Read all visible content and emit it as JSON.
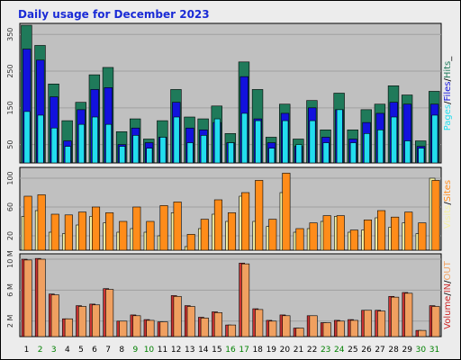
{
  "colors": {
    "hits": "#1f7a5a",
    "files": "#1212dd",
    "pages": "#22ddee",
    "visits": "#f5f0a0",
    "sites": "#ff8c1a",
    "kbin": "#cc3333",
    "kbout": "#f0a060",
    "volume": "#cc2222",
    "day_weekday": "#000000",
    "day_weekend": "#008000",
    "title": "#1a2bd6"
  },
  "chart_data": {
    "type": "bar",
    "title": "Daily usage for December 2023",
    "categories": [
      "1",
      "2",
      "3",
      "4",
      "5",
      "6",
      "7",
      "8",
      "9",
      "10",
      "11",
      "12",
      "13",
      "14",
      "15",
      "16",
      "17",
      "18",
      "19",
      "20",
      "21",
      "22",
      "23",
      "24",
      "25",
      "26",
      "27",
      "28",
      "29",
      "30",
      "31"
    ],
    "weekend_days": [
      "2",
      "3",
      "9",
      "10",
      "16",
      "17",
      "23",
      "24",
      "30",
      "31"
    ],
    "panels": [
      {
        "name": "usage",
        "ylim": [
          0,
          380
        ],
        "yticks": [
          50,
          150,
          250,
          350
        ],
        "legend_label_parts": [
          "Pages",
          "/",
          "Files",
          "/",
          "Hits",
          "_"
        ],
        "series": [
          {
            "name": "Hits",
            "values": [
              375,
              320,
              215,
              115,
              165,
              240,
              260,
              85,
              120,
              65,
              115,
              200,
              125,
              120,
              155,
              80,
              275,
              200,
              70,
              160,
              65,
              170,
              90,
              190,
              90,
              145,
              160,
              210,
              185,
              60,
              195
            ]
          },
          {
            "name": "Files",
            "values": [
              310,
              280,
              180,
              60,
              145,
              200,
              205,
              50,
              95,
              55,
              70,
              165,
              95,
              90,
              110,
              55,
              235,
              120,
              55,
              135,
              45,
              150,
              70,
              145,
              65,
              110,
              135,
              165,
              160,
              45,
              160
            ]
          },
          {
            "name": "Pages",
            "values": [
              140,
              130,
              95,
              45,
              105,
              125,
              105,
              45,
              75,
              40,
              70,
              125,
              55,
              75,
              120,
              55,
              135,
              115,
              40,
              115,
              50,
              115,
              55,
              145,
              55,
              80,
              90,
              125,
              60,
              40,
              130
            ]
          }
        ]
      },
      {
        "name": "visitors",
        "ylim": [
          0,
          115
        ],
        "yticks": [
          20,
          60,
          100
        ],
        "legend_label_parts": [
          "Visits",
          "/",
          "Sites"
        ],
        "series": [
          {
            "name": "Visits",
            "values": [
              47,
              55,
              25,
              23,
              35,
              47,
              38,
              25,
              30,
              25,
              20,
              52,
              5,
              30,
              50,
              40,
              75,
              40,
              33,
              80,
              25,
              30,
              40,
              47,
              25,
              28,
              45,
              32,
              38,
              23,
              100
            ]
          },
          {
            "name": "Sites",
            "values": [
              75,
              77,
              50,
              49,
              53,
              60,
              52,
              40,
              60,
              40,
              62,
              67,
              22,
              43,
              70,
              52,
              80,
              97,
              43,
              107,
              30,
              38,
              48,
              48,
              28,
              42,
              55,
              46,
              53,
              38,
              97
            ]
          }
        ]
      },
      {
        "name": "volume",
        "ylim": [
          0,
          10700000
        ],
        "yticks": [
          2000000,
          6000000,
          10000000
        ],
        "ytick_labels": [
          "2 M",
          "6 M",
          "10 M"
        ],
        "legend_label_parts": [
          "Volume",
          "/",
          "IN",
          "/",
          "OUT"
        ],
        "series": [
          {
            "name": "KBytes In",
            "values": [
              10000000,
              10100000,
              5500000,
              2300000,
              4000000,
              4200000,
              6200000,
              2000000,
              2800000,
              2200000,
              1900000,
              5300000,
              4000000,
              2500000,
              3200000,
              1500000,
              9500000,
              3600000,
              2100000,
              2800000,
              1100000,
              2700000,
              1800000,
              2100000,
              2200000,
              3400000,
              3400000,
              5200000,
              5700000,
              800000,
              4000000
            ]
          },
          {
            "name": "KBytes Out",
            "values": [
              9900000,
              10000000,
              5400000,
              2300000,
              3900000,
              4100000,
              6100000,
              2000000,
              2700000,
              2100000,
              1900000,
              5200000,
              3900000,
              2400000,
              3100000,
              1500000,
              9400000,
              3500000,
              2000000,
              2700000,
              1100000,
              2700000,
              1800000,
              2000000,
              2100000,
              3400000,
              3300000,
              5100000,
              5600000,
              800000,
              3900000
            ]
          }
        ]
      }
    ]
  }
}
